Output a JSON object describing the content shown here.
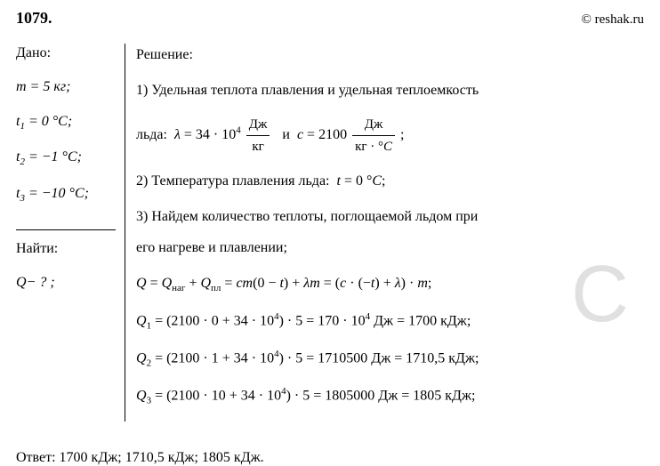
{
  "header": {
    "problem_number": "1079.",
    "copyright": "© reshak.ru"
  },
  "given": {
    "title": "Дано:",
    "lines": [
      "m = 5 кг;",
      "t₁ = 0 °C;",
      "t₂ = −1 °C;",
      "t₃ = −10 °C;"
    ]
  },
  "find": {
    "title": "Найти:",
    "lines": [
      "Q− ? ;"
    ]
  },
  "solution": {
    "title": "Решение:",
    "step1_text": "1) Удельная теплота плавления и удельная теплоемкость",
    "step1_formula_prefix": "льда:  λ = 34 · 10",
    "step1_formula_exp": "4",
    "step1_frac1_num": "Дж",
    "step1_frac1_den": "кг",
    "step1_and": "  и  c = 2100 ",
    "step1_frac2_num": "Дж",
    "step1_frac2_den": "кг · °C",
    "step1_suffix": " ;",
    "step2": "2) Температура плавления льда:  t = 0 °C;",
    "step3_line1": "3) Найдем количество теплоты, поглощаемой льдом при",
    "step3_line2": "его нагреве и плавлении;",
    "formula_q": "Q = Qнаг + Qпл = cm(0 − t) + λm = (c · (−t) + λ) · m;",
    "q1": "Q₁ = (2100 · 0 + 34 · 10⁴) · 5 = 170 · 10⁴ Дж = 1700 кДж;",
    "q2": "Q₂ = (2100 · 1 + 34 · 10⁴) · 5 = 1710500 Дж = 1710,5 кДж;",
    "q3": "Q₃ = (2100 · 10 + 34 · 10⁴) · 5 = 1805000 Дж = 1805 кДж;"
  },
  "answer": {
    "text": "Ответ:  1700 кДж;  1710,5 кДж;  1805 кДж."
  },
  "watermark": "C",
  "colors": {
    "text": "#000000",
    "background": "#ffffff",
    "watermark": "rgba(0,0,0,0.12)"
  },
  "fonts": {
    "body_family": "Georgia, Times New Roman, serif",
    "body_size": 16,
    "number_size": 18,
    "sub_size": 11
  }
}
